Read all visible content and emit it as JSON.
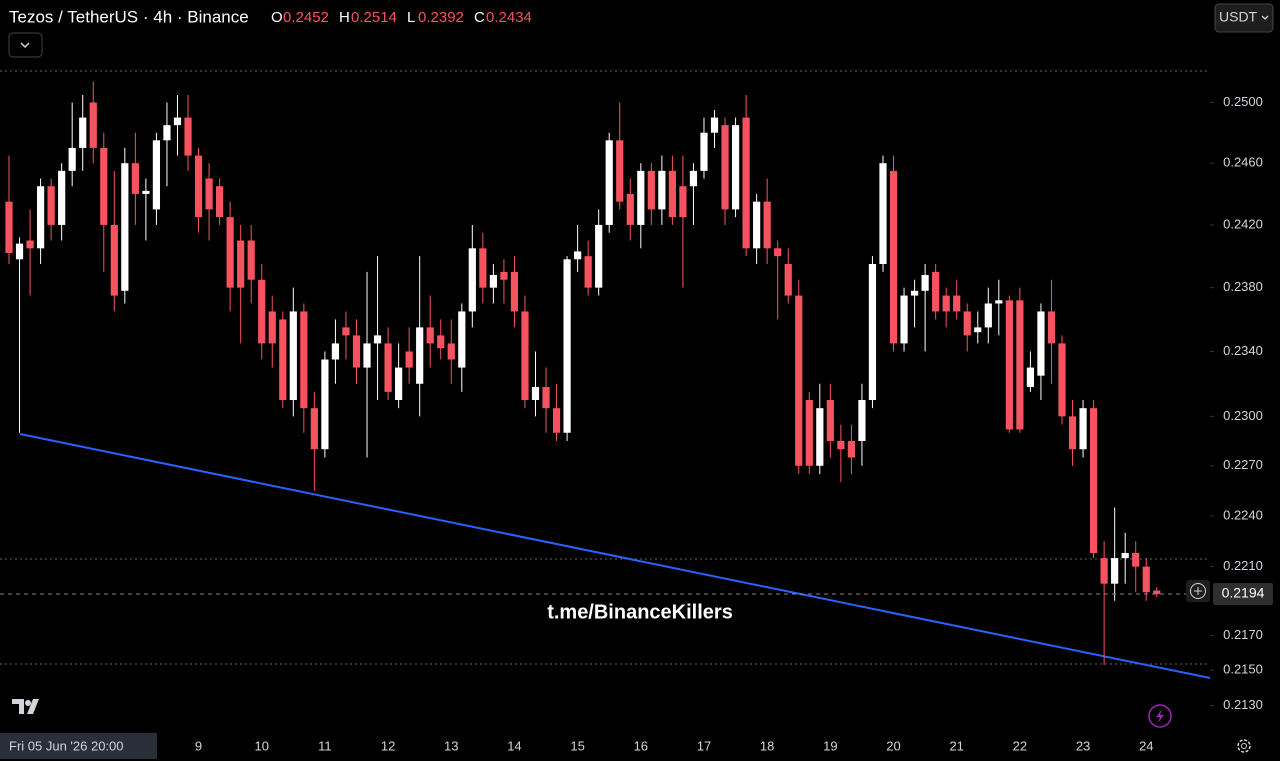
{
  "header": {
    "symbol": "Tezos / TetherUS · 4h · Binance",
    "ohlc": [
      {
        "key": "O",
        "value": "0.2452"
      },
      {
        "key": "H",
        "value": "0.2514"
      },
      {
        "key": "L",
        "value": "0.2392"
      },
      {
        "key": "C",
        "value": "0.2434"
      }
    ],
    "currency": "USDT"
  },
  "chart_data": {
    "type": "candlestick",
    "log_scale": true,
    "grid": false,
    "up_color": "#ffffff",
    "down_color": "#f7525f",
    "watermark": "t.me/BinanceKillers",
    "crosshair_label": "Fri 05 Jun '26 20:00",
    "last_price": 0.2194,
    "ylim": [
      0.2115,
      0.2569
    ],
    "yticks": [
      {
        "value": 0.25,
        "label": "0.2500"
      },
      {
        "value": 0.246,
        "label": "0.2460"
      },
      {
        "value": 0.242,
        "label": "0.2420"
      },
      {
        "value": 0.238,
        "label": "0.2380"
      },
      {
        "value": 0.234,
        "label": "0.2340"
      },
      {
        "value": 0.23,
        "label": "0.2300"
      },
      {
        "value": 0.227,
        "label": "0.2270"
      },
      {
        "value": 0.224,
        "label": "0.2240"
      },
      {
        "value": 0.221,
        "label": "0.2210"
      },
      {
        "value": 0.217,
        "label": "0.2170"
      },
      {
        "value": 0.215,
        "label": "0.2150"
      },
      {
        "value": 0.213,
        "label": "0.2130"
      }
    ],
    "categories": [
      null,
      null,
      null,
      null,
      null,
      null,
      null,
      null,
      null,
      null,
      null,
      null,
      null,
      null,
      null,
      null,
      null,
      null,
      "9",
      null,
      null,
      null,
      null,
      null,
      "10",
      null,
      null,
      null,
      null,
      null,
      "11",
      null,
      null,
      null,
      null,
      null,
      "12",
      null,
      null,
      null,
      null,
      null,
      "13",
      null,
      null,
      null,
      null,
      null,
      "14",
      null,
      null,
      null,
      null,
      null,
      "15",
      null,
      null,
      null,
      null,
      null,
      "16",
      null,
      null,
      null,
      null,
      null,
      "17",
      null,
      null,
      null,
      null,
      null,
      "18",
      null,
      null,
      null,
      null,
      null,
      "19",
      null,
      null,
      null,
      null,
      null,
      "20",
      null,
      null,
      null,
      null,
      null,
      "21",
      null,
      null,
      null,
      null,
      null,
      "22",
      null,
      null,
      null,
      null,
      null,
      "23",
      null,
      null,
      null,
      null,
      null,
      "24",
      null
    ],
    "open": [
      0.2435,
      0.2398,
      0.241,
      0.2405,
      0.2445,
      0.242,
      0.2455,
      0.247,
      0.25,
      0.247,
      0.242,
      0.2378,
      0.246,
      0.244,
      0.243,
      0.2475,
      0.2485,
      0.249,
      0.2465,
      0.245,
      0.2445,
      0.2425,
      0.241,
      0.241,
      0.2385,
      0.2365,
      0.236,
      0.231,
      0.2365,
      0.2305,
      0.228,
      0.2335,
      0.2355,
      0.235,
      0.233,
      0.2345,
      0.2345,
      0.231,
      0.234,
      0.232,
      0.2355,
      0.235,
      0.2345,
      0.233,
      0.2365,
      0.2405,
      0.238,
      0.239,
      0.239,
      0.2365,
      0.231,
      0.2318,
      0.2305,
      0.229,
      0.2398,
      0.24,
      0.238,
      0.242,
      0.2475,
      0.244,
      0.242,
      0.2455,
      0.243,
      0.2455,
      0.2445,
      0.2445,
      0.2455,
      0.248,
      0.2485,
      0.243,
      0.249,
      0.2405,
      0.2435,
      0.2405,
      0.2395,
      0.2375,
      0.231,
      0.227,
      0.231,
      0.2285,
      0.2285,
      0.2285,
      0.231,
      0.2395,
      0.2455,
      0.2345,
      0.2375,
      0.2378,
      0.239,
      0.2375,
      0.2375,
      0.2365,
      0.2352,
      0.2355,
      0.237,
      0.2372,
      0.2372,
      0.2318,
      0.2325,
      0.2365,
      0.2345,
      0.23,
      0.228,
      0.2305,
      0.2215,
      0.22,
      0.2215,
      0.2218,
      0.221,
      0.2196
    ],
    "high": [
      0.2465,
      0.2412,
      0.243,
      0.245,
      0.245,
      0.246,
      0.25,
      0.2505,
      0.2514,
      0.248,
      0.2455,
      0.247,
      0.248,
      0.245,
      0.248,
      0.25,
      0.2505,
      0.2505,
      0.247,
      0.246,
      0.245,
      0.2435,
      0.242,
      0.242,
      0.2395,
      0.2375,
      0.2365,
      0.238,
      0.237,
      0.2315,
      0.234,
      0.236,
      0.2365,
      0.236,
      0.239,
      0.24,
      0.2355,
      0.2345,
      0.2355,
      0.24,
      0.2375,
      0.236,
      0.236,
      0.237,
      0.242,
      0.2415,
      0.2395,
      0.2398,
      0.24,
      0.2375,
      0.234,
      0.233,
      0.232,
      0.24,
      0.242,
      0.241,
      0.243,
      0.248,
      0.25,
      0.245,
      0.246,
      0.246,
      0.2465,
      0.2465,
      0.2465,
      0.246,
      0.249,
      0.2495,
      0.249,
      0.249,
      0.2505,
      0.244,
      0.245,
      0.241,
      0.2405,
      0.2385,
      0.2315,
      0.232,
      0.232,
      0.2295,
      0.2295,
      0.232,
      0.24,
      0.2465,
      0.2465,
      0.238,
      0.2385,
      0.2395,
      0.2395,
      0.238,
      0.2385,
      0.237,
      0.2365,
      0.238,
      0.2385,
      0.2375,
      0.238,
      0.234,
      0.237,
      0.2385,
      0.235,
      0.231,
      0.231,
      0.231,
      0.2225,
      0.2245,
      0.223,
      0.2225,
      0.2215,
      0.2198
    ],
    "low": [
      0.2395,
      0.229,
      0.2375,
      0.2395,
      0.241,
      0.241,
      0.2445,
      0.2455,
      0.246,
      0.239,
      0.2365,
      0.237,
      0.242,
      0.241,
      0.242,
      0.2445,
      0.2465,
      0.2455,
      0.2415,
      0.241,
      0.242,
      0.2365,
      0.2345,
      0.237,
      0.2335,
      0.233,
      0.2305,
      0.23,
      0.229,
      0.2255,
      0.2275,
      0.232,
      0.2335,
      0.232,
      0.2275,
      0.231,
      0.231,
      0.2305,
      0.232,
      0.23,
      0.233,
      0.2335,
      0.232,
      0.2315,
      0.2355,
      0.237,
      0.237,
      0.237,
      0.2355,
      0.2305,
      0.23,
      0.229,
      0.2285,
      0.2285,
      0.239,
      0.2375,
      0.2375,
      0.2415,
      0.243,
      0.241,
      0.2405,
      0.242,
      0.242,
      0.242,
      0.238,
      0.242,
      0.245,
      0.247,
      0.242,
      0.2425,
      0.24,
      0.2395,
      0.2395,
      0.236,
      0.237,
      0.2265,
      0.2265,
      0.2265,
      0.2275,
      0.226,
      0.2265,
      0.227,
      0.2305,
      0.239,
      0.234,
      0.234,
      0.2355,
      0.234,
      0.236,
      0.2355,
      0.236,
      0.234,
      0.2345,
      0.2345,
      0.235,
      0.229,
      0.229,
      0.2315,
      0.231,
      0.232,
      0.2295,
      0.227,
      0.2275,
      0.2215,
      0.2153,
      0.219,
      0.22,
      0.2195,
      0.219,
      0.2192
    ],
    "close": [
      0.2402,
      0.2408,
      0.2405,
      0.2445,
      0.242,
      0.2455,
      0.247,
      0.249,
      0.247,
      0.242,
      0.2375,
      0.246,
      0.244,
      0.2442,
      0.2475,
      0.2485,
      0.249,
      0.2465,
      0.2425,
      0.243,
      0.2425,
      0.238,
      0.238,
      0.2385,
      0.2345,
      0.2345,
      0.231,
      0.2365,
      0.2305,
      0.228,
      0.2335,
      0.2345,
      0.235,
      0.233,
      0.2345,
      0.235,
      0.2315,
      0.233,
      0.233,
      0.2355,
      0.2345,
      0.2342,
      0.2335,
      0.2365,
      0.2405,
      0.238,
      0.2388,
      0.2385,
      0.2365,
      0.231,
      0.2318,
      0.2305,
      0.229,
      0.2398,
      0.2403,
      0.238,
      0.242,
      0.2475,
      0.2435,
      0.242,
      0.2455,
      0.243,
      0.2455,
      0.2425,
      0.2425,
      0.2455,
      0.248,
      0.249,
      0.243,
      0.2485,
      0.2405,
      0.2435,
      0.2405,
      0.24,
      0.2375,
      0.227,
      0.227,
      0.2305,
      0.2285,
      0.228,
      0.2275,
      0.231,
      0.2395,
      0.246,
      0.2345,
      0.2375,
      0.2378,
      0.2388,
      0.2365,
      0.2365,
      0.2365,
      0.235,
      0.2355,
      0.237,
      0.2372,
      0.2292,
      0.2292,
      0.233,
      0.2365,
      0.2345,
      0.23,
      0.228,
      0.2305,
      0.2218,
      0.22,
      0.2215,
      0.2218,
      0.221,
      0.2195,
      0.2194
    ]
  }
}
